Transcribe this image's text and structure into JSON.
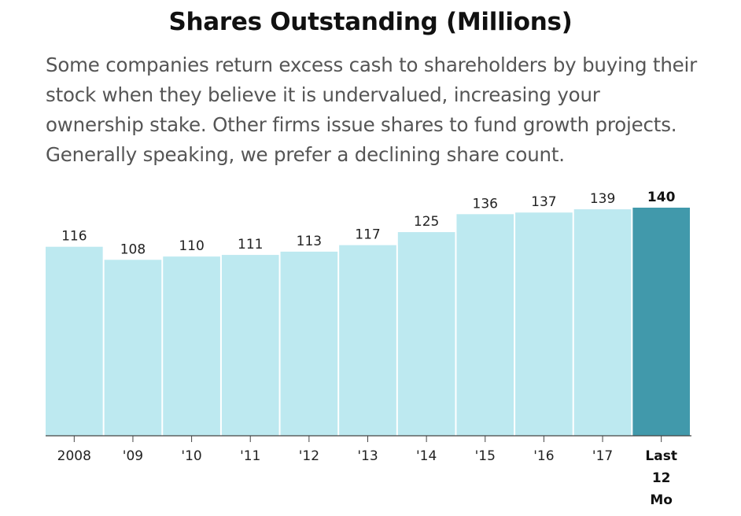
{
  "chart_data": {
    "type": "bar",
    "title": "Shares Outstanding (Millions)",
    "subtitle": "Some companies return excess cash to shareholders by buying their stock when they believe it is undervalued, increasing your ownership stake. Other firms issue shares to fund growth projects. Generally speaking, we prefer a declining share count.",
    "categories": [
      "2008",
      "'09",
      "'10",
      "'11",
      "'12",
      "'13",
      "'14",
      "'15",
      "'16",
      "'17",
      "Last 12 Mo"
    ],
    "values": [
      116,
      108,
      110,
      111,
      113,
      117,
      125,
      136,
      137,
      139,
      140
    ],
    "highlight_index": 10,
    "ylim": [
      0,
      140
    ],
    "grid": false,
    "colors": {
      "bar": "#bde9f0",
      "highlight_bar": "#4199ab",
      "axis": "#444444"
    }
  }
}
